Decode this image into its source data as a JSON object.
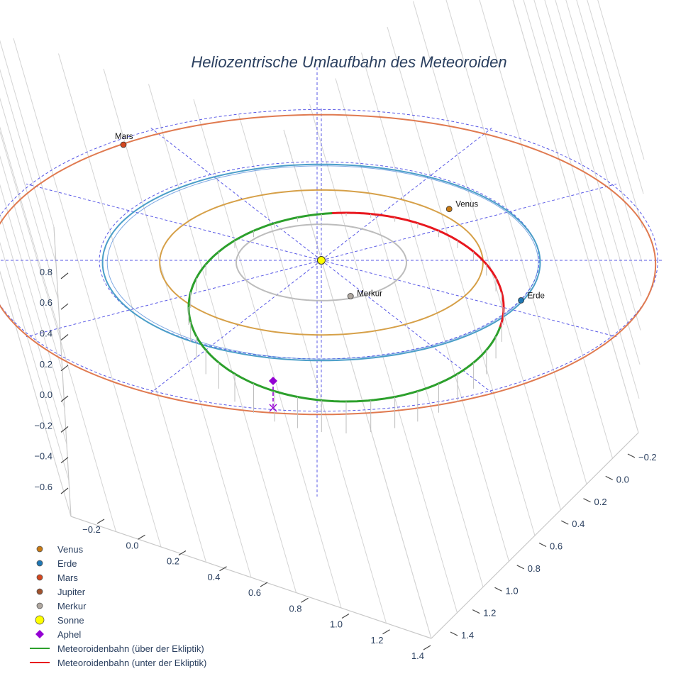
{
  "chart_data": {
    "type": "scatter3d",
    "title": "Heliozentrische Umlaufbahn des Meteoroiden",
    "axes": {
      "x": {
        "ticks": [
          "−0.2",
          "0.0",
          "0.2",
          "0.4",
          "0.6",
          "0.8",
          "1.0",
          "1.2",
          "1.4"
        ]
      },
      "y": {
        "ticks": [
          "−0.2",
          "0.0",
          "0.2",
          "0.4",
          "0.6",
          "0.8",
          "1.0",
          "1.2",
          "1.4"
        ]
      },
      "z": {
        "ticks": [
          "−0.6",
          "−0.4",
          "−0.2",
          "0.0",
          "0.2",
          "0.4",
          "0.6",
          "0.8"
        ]
      }
    },
    "planets": [
      {
        "name": "Venus",
        "label": "Venus",
        "color": "#c87a14"
      },
      {
        "name": "Erde",
        "label": "Erde",
        "color": "#1f77b4"
      },
      {
        "name": "Mars",
        "label": "Mars",
        "color": "#d4471f"
      },
      {
        "name": "Jupiter",
        "label": "",
        "color": "#a0522d"
      },
      {
        "name": "Merkur",
        "label": "Merkur",
        "color": "#b0a8a0"
      }
    ],
    "orbit_colors": {
      "Merkur": "#bcbcbc",
      "Venus": "#d6a048",
      "Erde": "#4a9ec8",
      "Mars": "#e07a50"
    },
    "sun": {
      "name": "Sonne",
      "color": "#ffff00"
    },
    "aphel": {
      "name": "Aphel",
      "color": "#9400d3"
    },
    "meteoroid": {
      "above": {
        "name": "Meteoroidenbahn (über der Ekliptik)",
        "color": "#2ca02c"
      },
      "below": {
        "name": "Meteoroidenbahn (unter der Ekliptik)",
        "color": "#e8171e"
      }
    },
    "reference_color": "#5959e6",
    "legend_position": "bottom-left",
    "legend": [
      {
        "label": "Venus",
        "symbol": "circle",
        "color": "#c87a14"
      },
      {
        "label": "Erde",
        "symbol": "circle",
        "color": "#1f77b4"
      },
      {
        "label": "Mars",
        "symbol": "circle",
        "color": "#d4471f"
      },
      {
        "label": "Jupiter",
        "symbol": "circle",
        "color": "#a0522d"
      },
      {
        "label": "Merkur",
        "symbol": "circle",
        "color": "#b0a8a0"
      },
      {
        "label": "Sonne",
        "symbol": "circle-large",
        "color": "#ffff00"
      },
      {
        "label": "Aphel",
        "symbol": "diamond",
        "color": "#9400d3"
      },
      {
        "label": "Meteoroidenbahn (über der Ekliptik)",
        "symbol": "line",
        "color": "#2ca02c"
      },
      {
        "label": "Meteoroidenbahn (unter der Ekliptik)",
        "symbol": "line",
        "color": "#e8171e"
      }
    ]
  }
}
